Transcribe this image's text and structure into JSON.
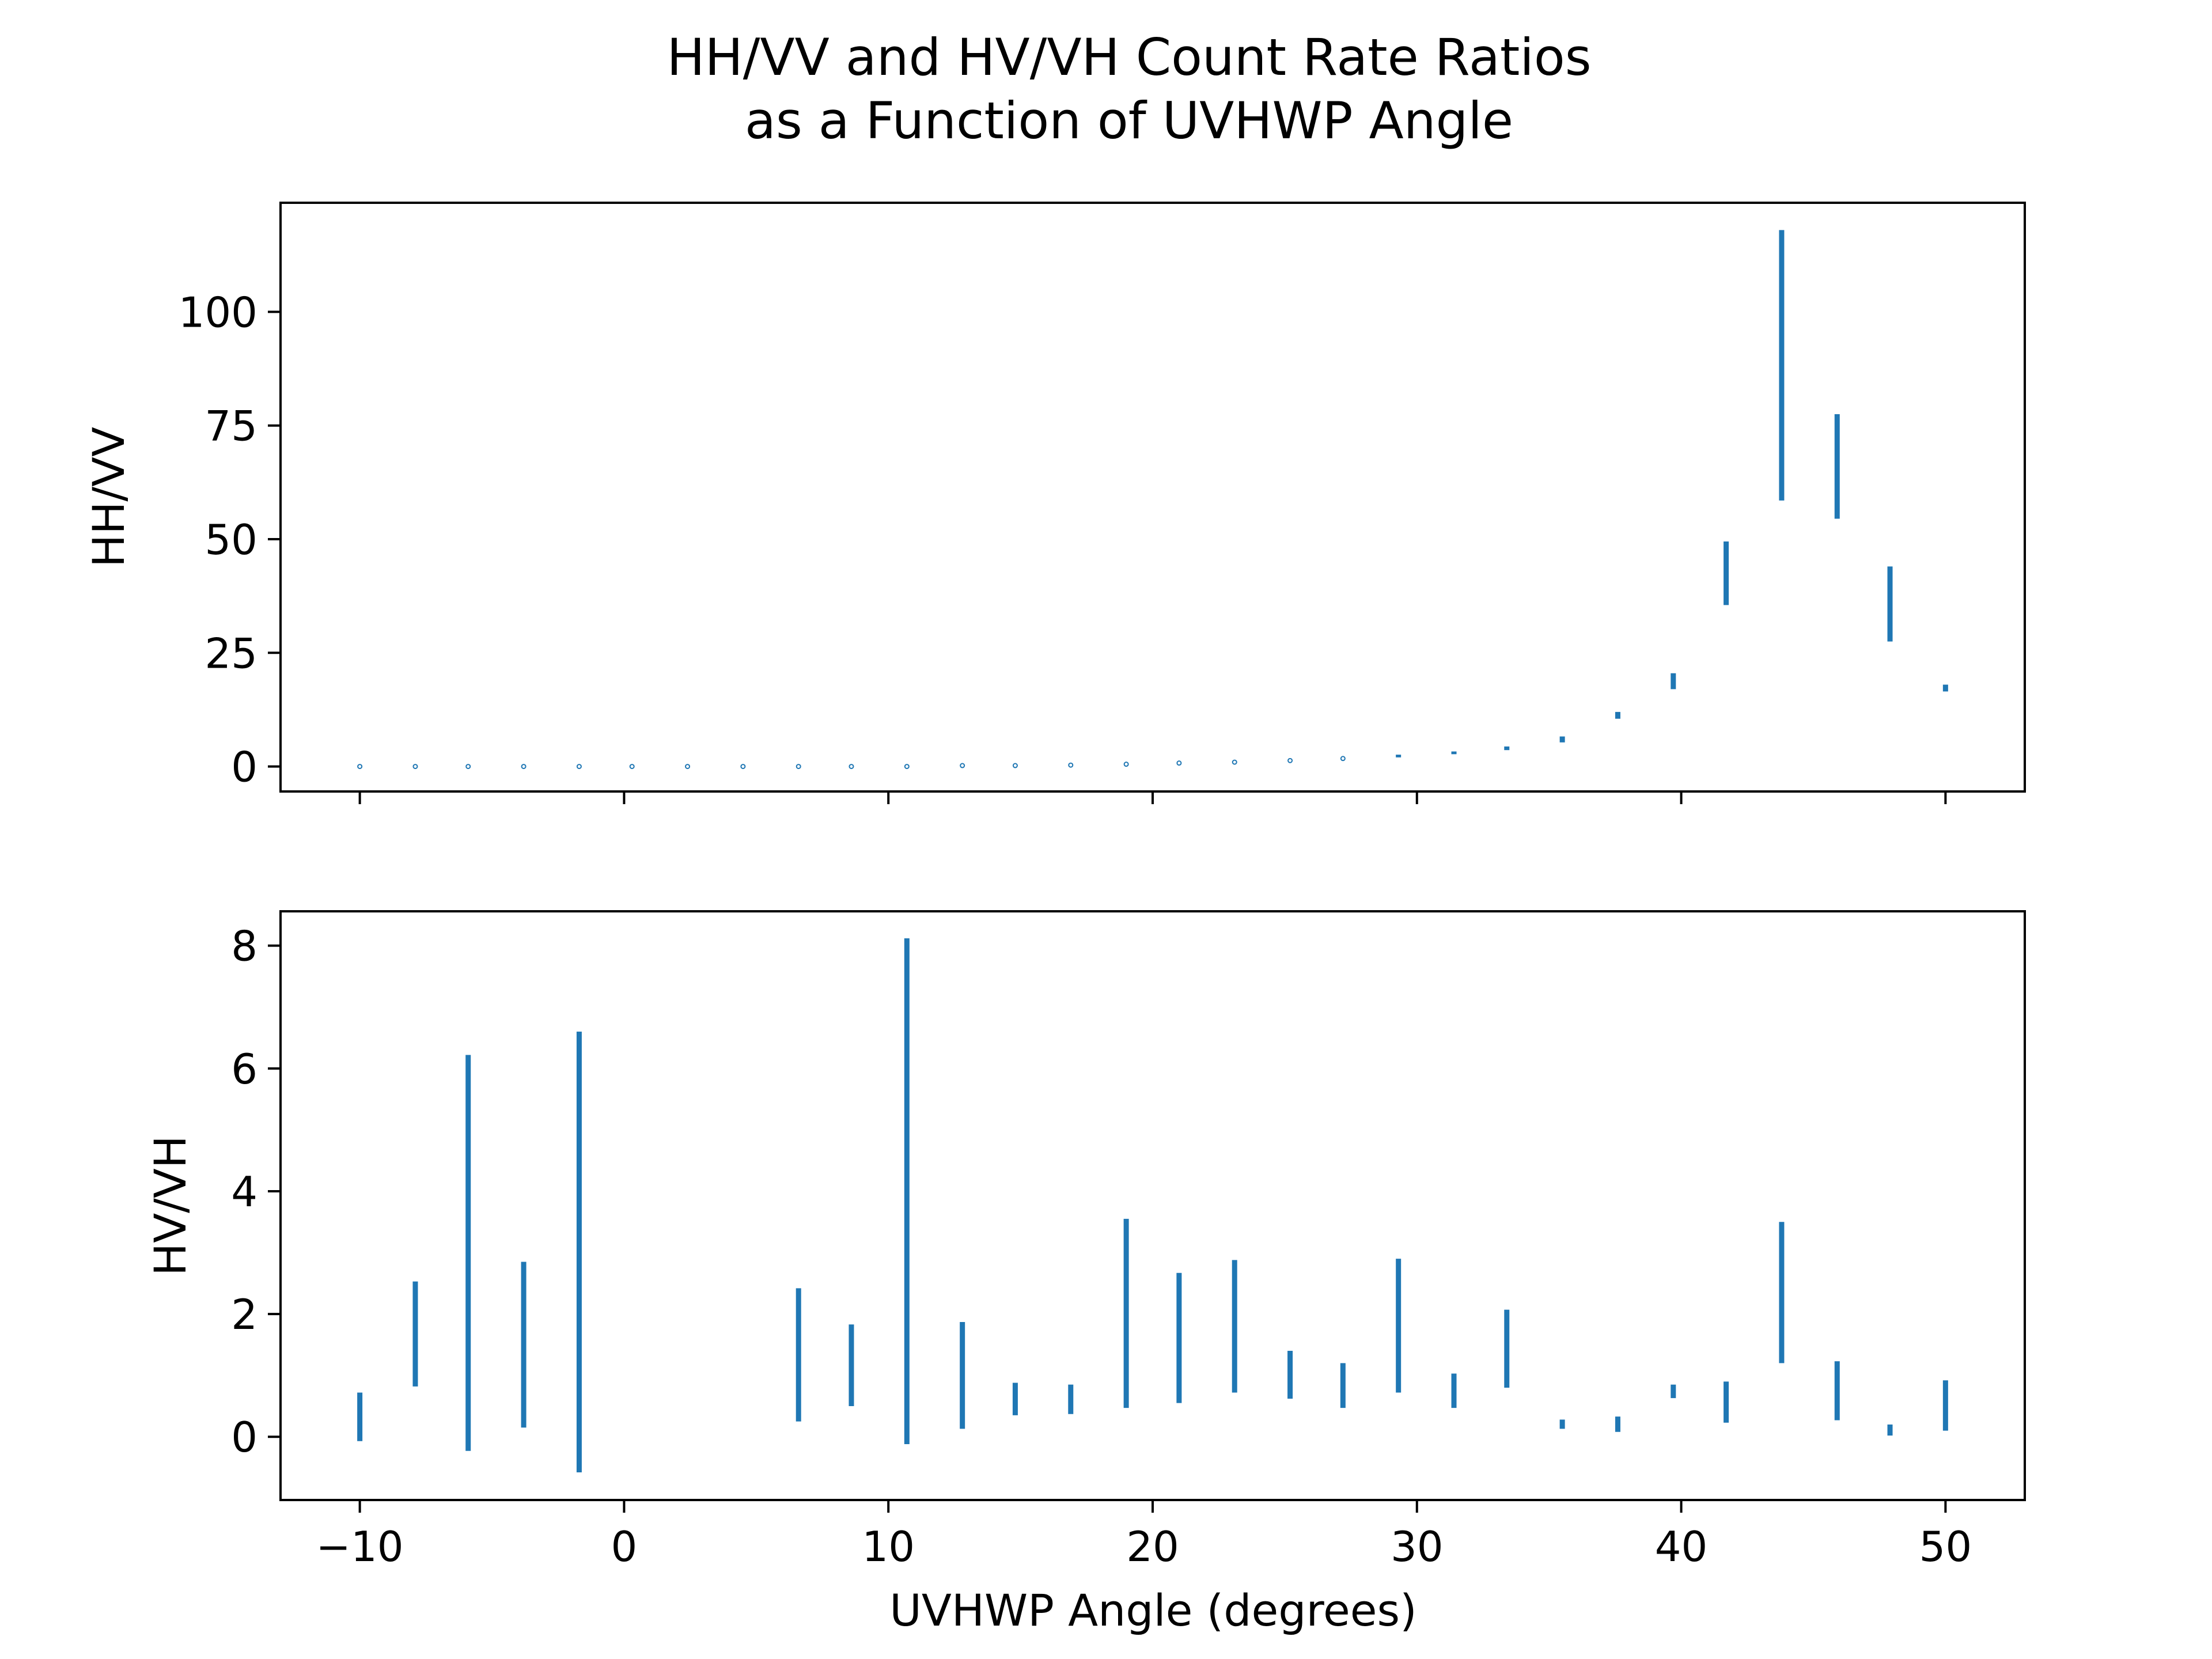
{
  "title_lines": [
    "HH/VV and HV/VH Count Rate Ratios",
    "as a Function of UVHWP Angle"
  ],
  "xlabel": "UVHWP Angle (degrees)",
  "chart_data": [
    {
      "type": "errorbar",
      "ylabel": "HH/VV",
      "xlim": [
        -13,
        53
      ],
      "ylim": [
        -5.5,
        124
      ],
      "xticks": [
        -10,
        0,
        10,
        20,
        30,
        40,
        50
      ],
      "xtick_labels": [
        "",
        "",
        "",
        "",
        "",
        "",
        ""
      ],
      "yticks": [
        0,
        25,
        50,
        75,
        100
      ],
      "ytick_labels": [
        "0",
        "25",
        "50",
        "75",
        "100"
      ],
      "color": "#1f77b4",
      "points": [
        {
          "x": -10,
          "low": 0,
          "high": 0
        },
        {
          "x": -7.9,
          "low": 0,
          "high": 0
        },
        {
          "x": -5.9,
          "low": 0,
          "high": 0
        },
        {
          "x": -3.8,
          "low": 0,
          "high": 0
        },
        {
          "x": -1.7,
          "low": 0,
          "high": 0
        },
        {
          "x": 0.3,
          "low": 0,
          "high": 0
        },
        {
          "x": 2.4,
          "low": 0,
          "high": 0
        },
        {
          "x": 4.5,
          "low": 0,
          "high": 0
        },
        {
          "x": 6.6,
          "low": 0,
          "high": 0
        },
        {
          "x": 8.6,
          "low": 0,
          "high": 0
        },
        {
          "x": 10.7,
          "low": 0,
          "high": 0
        },
        {
          "x": 12.8,
          "low": 0.1,
          "high": 0.3
        },
        {
          "x": 14.8,
          "low": 0.1,
          "high": 0.3
        },
        {
          "x": 16.9,
          "low": 0.2,
          "high": 0.4
        },
        {
          "x": 19.0,
          "low": 0.4,
          "high": 0.6
        },
        {
          "x": 21.0,
          "low": 0.6,
          "high": 0.9
        },
        {
          "x": 23.1,
          "low": 0.8,
          "high": 1.1
        },
        {
          "x": 25.2,
          "low": 1.1,
          "high": 1.5
        },
        {
          "x": 27.2,
          "low": 1.5,
          "high": 2.0
        },
        {
          "x": 29.3,
          "low": 2.0,
          "high": 2.6
        },
        {
          "x": 31.4,
          "low": 2.7,
          "high": 3.3
        },
        {
          "x": 33.4,
          "low": 3.6,
          "high": 4.4
        },
        {
          "x": 35.5,
          "low": 5.3,
          "high": 6.6
        },
        {
          "x": 37.6,
          "low": 10.5,
          "high": 12.0
        },
        {
          "x": 39.7,
          "low": 17.0,
          "high": 20.5
        },
        {
          "x": 41.7,
          "low": 35.5,
          "high": 49.5
        },
        {
          "x": 43.8,
          "low": 58.5,
          "high": 118
        },
        {
          "x": 45.9,
          "low": 54.5,
          "high": 77.5
        },
        {
          "x": 47.9,
          "low": 27.5,
          "high": 44.0
        },
        {
          "x": 50.0,
          "low": 16.5,
          "high": 18.0
        }
      ]
    },
    {
      "type": "errorbar",
      "ylabel": "HV/VH",
      "xlim": [
        -13,
        53
      ],
      "ylim": [
        -1.03,
        8.56
      ],
      "xticks": [
        -10,
        0,
        10,
        20,
        30,
        40,
        50
      ],
      "xtick_labels": [
        "−10",
        "0",
        "10",
        "20",
        "30",
        "40",
        "50"
      ],
      "yticks": [
        0,
        2,
        4,
        6,
        8
      ],
      "ytick_labels": [
        "0",
        "2",
        "4",
        "6",
        "8"
      ],
      "color": "#1f77b4",
      "points": [
        {
          "x": -10,
          "low": -0.07,
          "high": 0.72
        },
        {
          "x": -7.9,
          "low": 0.82,
          "high": 2.53
        },
        {
          "x": -5.9,
          "low": -0.23,
          "high": 6.22
        },
        {
          "x": -3.8,
          "low": 0.15,
          "high": 2.85
        },
        {
          "x": -1.7,
          "low": -0.58,
          "high": 6.6
        },
        {
          "x": 6.6,
          "low": 0.25,
          "high": 2.42
        },
        {
          "x": 8.6,
          "low": 0.5,
          "high": 1.83
        },
        {
          "x": 10.7,
          "low": -0.12,
          "high": 8.12
        },
        {
          "x": 12.8,
          "low": 0.13,
          "high": 1.87
        },
        {
          "x": 14.8,
          "low": 0.35,
          "high": 0.88
        },
        {
          "x": 16.9,
          "low": 0.37,
          "high": 0.85
        },
        {
          "x": 19.0,
          "low": 0.47,
          "high": 3.55
        },
        {
          "x": 21.0,
          "low": 0.55,
          "high": 2.67
        },
        {
          "x": 23.1,
          "low": 0.72,
          "high": 2.88
        },
        {
          "x": 25.2,
          "low": 0.62,
          "high": 1.4
        },
        {
          "x": 27.2,
          "low": 0.47,
          "high": 1.2
        },
        {
          "x": 29.3,
          "low": 0.72,
          "high": 2.9
        },
        {
          "x": 31.4,
          "low": 0.47,
          "high": 1.03
        },
        {
          "x": 33.4,
          "low": 0.8,
          "high": 2.07
        },
        {
          "x": 35.5,
          "low": 0.13,
          "high": 0.28
        },
        {
          "x": 37.6,
          "low": 0.08,
          "high": 0.33
        },
        {
          "x": 39.7,
          "low": 0.63,
          "high": 0.85
        },
        {
          "x": 41.7,
          "low": 0.23,
          "high": 0.9
        },
        {
          "x": 43.8,
          "low": 1.2,
          "high": 3.5
        },
        {
          "x": 45.9,
          "low": 0.27,
          "high": 1.23
        },
        {
          "x": 47.9,
          "low": 0.02,
          "high": 0.2
        },
        {
          "x": 50.0,
          "low": 0.1,
          "high": 0.92
        }
      ]
    }
  ]
}
